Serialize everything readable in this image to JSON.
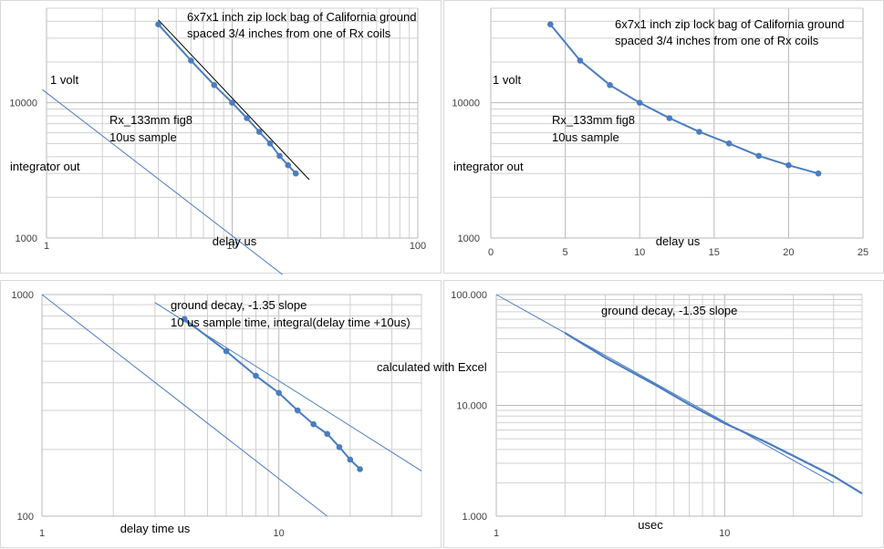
{
  "colors": {
    "series": "#4a7dbf",
    "grid": "#d0d0d0",
    "fit": "#000000"
  },
  "global_note": "calculated with Excel",
  "chart_data": [
    {
      "id": "top-left",
      "type": "line",
      "xscale": "log",
      "yscale": "log",
      "xlim": [
        1,
        100
      ],
      "ylim": [
        1000,
        50000
      ],
      "x_ticks": [
        "1",
        "10",
        "100"
      ],
      "y_ticks": [
        "1000",
        "10000"
      ],
      "xlabel": "delay us",
      "annotations": [
        "6x7x1 inch zip lock bag of California ground",
        "spaced 3/4 inches from one of Rx coils",
        "1 volt",
        "Rx_133mm fig8",
        "10us sample",
        "integrator out"
      ],
      "series": [
        {
          "values_x": [
            4,
            6,
            8,
            10,
            12,
            14,
            16,
            18,
            20,
            22
          ],
          "values_y": [
            38000,
            20500,
            13500,
            10000,
            7700,
            6100,
            5000,
            4050,
            3450,
            3000
          ]
        }
      ],
      "fit_line": {
        "x": [
          4,
          26
        ],
        "y": [
          41000,
          2700
        ]
      },
      "reference_line": {
        "x": [
          0.95,
          40
        ],
        "y": [
          12500,
          240
        ]
      }
    },
    {
      "id": "top-right",
      "type": "line",
      "xscale": "linear",
      "yscale": "log",
      "xlim": [
        0,
        25
      ],
      "ylim": [
        1000,
        50000
      ],
      "x_ticks": [
        "0",
        "5",
        "10",
        "15",
        "20",
        "25"
      ],
      "y_ticks": [
        "1000",
        "10000"
      ],
      "xlabel": "delay us",
      "annotations": [
        "6x7x1 inch zip lock bag of California ground",
        "spaced 3/4 inches from one of Rx coils",
        "1 volt",
        "Rx_133mm fig8",
        "10us sample",
        "integrator out"
      ],
      "series": [
        {
          "values_x": [
            4,
            6,
            8,
            10,
            12,
            14,
            16,
            18,
            20,
            22
          ],
          "values_y": [
            38000,
            20500,
            13500,
            10000,
            7700,
            6100,
            5000,
            4050,
            3450,
            3000
          ]
        }
      ]
    },
    {
      "id": "bottom-left",
      "type": "line",
      "xscale": "log",
      "yscale": "log",
      "xlim": [
        1,
        40
      ],
      "ylim": [
        100,
        1000
      ],
      "x_ticks": [
        "1",
        "10"
      ],
      "y_ticks": [
        "100",
        "1000"
      ],
      "xlabel": "delay time us",
      "annotations": [
        "ground decay, -1.35 slope",
        "10 us sample time, integral(delay time +10us)"
      ],
      "series": [
        {
          "values_x": [
            4,
            6,
            8,
            10,
            12,
            14,
            16,
            18,
            20,
            22
          ],
          "values_y": [
            775,
            555,
            430,
            360,
            300,
            260,
            235,
            205,
            180,
            163
          ]
        }
      ],
      "fit_line": {
        "x": [
          3,
          40
        ],
        "y": [
          920,
          160
        ]
      },
      "reference_line": {
        "x": [
          1,
          16
        ],
        "y": [
          1000,
          100
        ]
      }
    },
    {
      "id": "bottom-right",
      "type": "line",
      "xscale": "log",
      "yscale": "log",
      "xlim": [
        1,
        40
      ],
      "ylim": [
        1,
        100
      ],
      "x_ticks": [
        "1",
        "10"
      ],
      "y_ticks": [
        "1.000",
        "10.000",
        "100.000"
      ],
      "xlabel": "usec",
      "annotations": [
        "ground decay, -1.35 slope"
      ],
      "series": [
        {
          "curve_x": [
            2,
            3,
            5,
            7,
            10,
            15,
            20,
            30,
            40
          ],
          "curve_y": [
            45,
            27,
            15.2,
            10.2,
            6.9,
            4.7,
            3.5,
            2.3,
            1.6
          ]
        }
      ],
      "reference_line": {
        "x": [
          1,
          30
        ],
        "y": [
          100,
          2
        ]
      }
    }
  ]
}
